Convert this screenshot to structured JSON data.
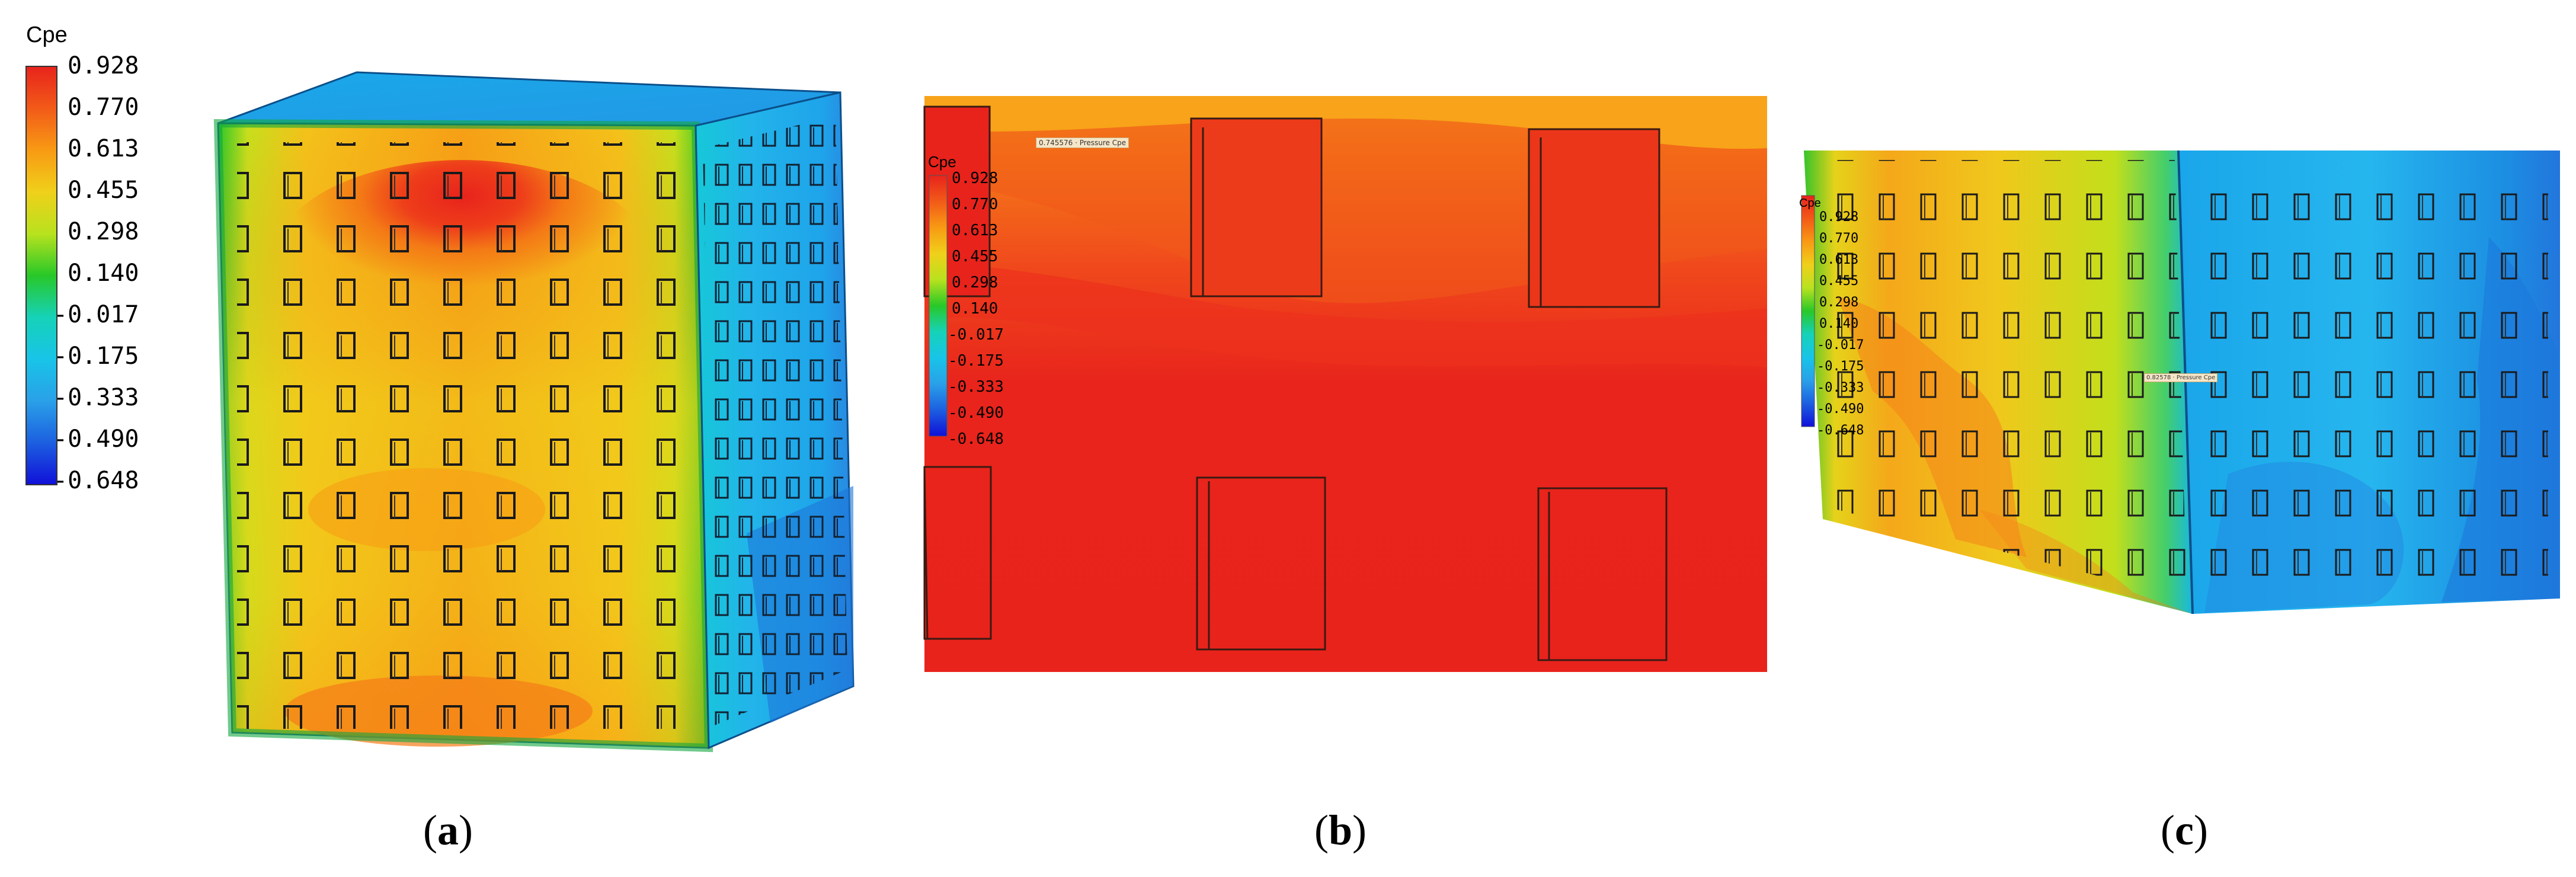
{
  "legend": {
    "title": "Cpe",
    "ticks": [
      "0.928",
      "0.770",
      "0.613",
      "0.455",
      "0.298",
      "0.140",
      "-0.017",
      "-0.175",
      "-0.333",
      "-0.490",
      "-0.648"
    ],
    "colors": [
      "#e8231c",
      "#f25a18",
      "#f89a14",
      "#f0d01a",
      "#b8e21e",
      "#28c828",
      "#16d2b8",
      "#18c4e8",
      "#2aa0e8",
      "#1c5fe0",
      "#1010d8"
    ]
  },
  "captions": {
    "a": "a",
    "b": "b",
    "c": "c"
  },
  "probe_labels": {
    "b": "0.745576 · Pressure Cpe",
    "c": "0.82578 · Pressure Cpe"
  }
}
